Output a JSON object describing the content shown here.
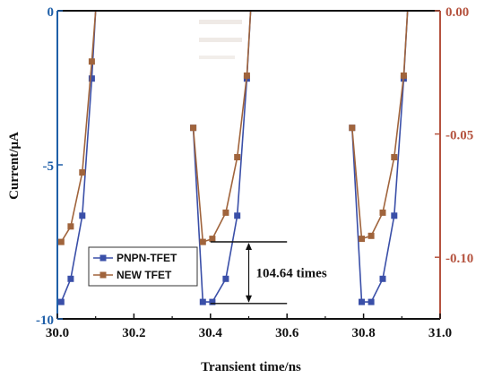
{
  "chart_data": {
    "type": "line",
    "xlabel": "Transient time/ns",
    "ylabel": "Current/μA",
    "xlim": [
      30.0,
      31.0
    ],
    "xticks": [
      "30.0",
      "30.2",
      "30.4",
      "30.6",
      "30.8",
      "31.0"
    ],
    "xtick_values": [
      30.0,
      30.2,
      30.4,
      30.6,
      30.8,
      31.0
    ],
    "left_axis": {
      "ylim": [
        -10,
        0
      ],
      "ticks": [
        "-10",
        "-5",
        "0"
      ],
      "tick_values": [
        -10,
        -5,
        0
      ],
      "color": "#1f5fa8"
    },
    "right_axis": {
      "ylim": [
        -0.125,
        0.0
      ],
      "ticks": [
        "-0.10",
        "-0.05",
        "0.00"
      ],
      "tick_values": [
        -0.1,
        -0.05,
        0.0
      ],
      "color": "#b5533f"
    },
    "series": [
      {
        "name": "PNPN-TFET",
        "axis": "left",
        "color": "#3a4fa8",
        "marker": "square",
        "segments": [
          [
            [
              30.01,
              -9.45
            ],
            [
              30.035,
              -8.7
            ],
            [
              30.065,
              -6.65
            ],
            [
              30.09,
              -2.2
            ],
            [
              30.1,
              0.0
            ]
          ],
          [
            [
              30.355,
              -3.8
            ],
            [
              30.38,
              -9.45
            ],
            [
              30.405,
              -9.45
            ],
            [
              30.44,
              -8.7
            ],
            [
              30.47,
              -6.65
            ],
            [
              30.495,
              -2.2
            ],
            [
              30.505,
              0.0
            ]
          ],
          [
            [
              30.77,
              -3.8
            ],
            [
              30.795,
              -9.45
            ],
            [
              30.82,
              -9.45
            ],
            [
              30.85,
              -8.7
            ],
            [
              30.88,
              -6.65
            ],
            [
              30.905,
              -2.2
            ],
            [
              30.915,
              0.0
            ]
          ]
        ]
      },
      {
        "name": "NEW TFET",
        "axis": "right",
        "color": "#a0643c",
        "marker": "square",
        "segments": [
          [
            [
              30.01,
              -0.0938
            ],
            [
              30.035,
              -0.0875
            ],
            [
              30.065,
              -0.0656
            ],
            [
              30.09,
              -0.0206
            ],
            [
              30.1,
              0.0
            ]
          ],
          [
            [
              30.355,
              -0.0475
            ],
            [
              30.38,
              -0.0938
            ],
            [
              30.405,
              -0.0925
            ],
            [
              30.44,
              -0.0819
            ],
            [
              30.47,
              -0.0594
            ],
            [
              30.495,
              -0.0263
            ],
            [
              30.505,
              0.0
            ]
          ],
          [
            [
              30.77,
              -0.0475
            ],
            [
              30.795,
              -0.0925
            ],
            [
              30.82,
              -0.0913
            ],
            [
              30.85,
              -0.0819
            ],
            [
              30.88,
              -0.0594
            ],
            [
              30.905,
              -0.0263
            ],
            [
              30.915,
              0.0
            ]
          ]
        ]
      }
    ],
    "annotations": [
      {
        "text": "104.64 times",
        "x_from": 30.4,
        "x_to": 30.6,
        "y_upper": -7.5,
        "y_lower": -9.5
      }
    ],
    "legend": {
      "placement": "lower-left",
      "entries": [
        "PNPN-TFET",
        "NEW TFET"
      ]
    },
    "grid": false
  }
}
